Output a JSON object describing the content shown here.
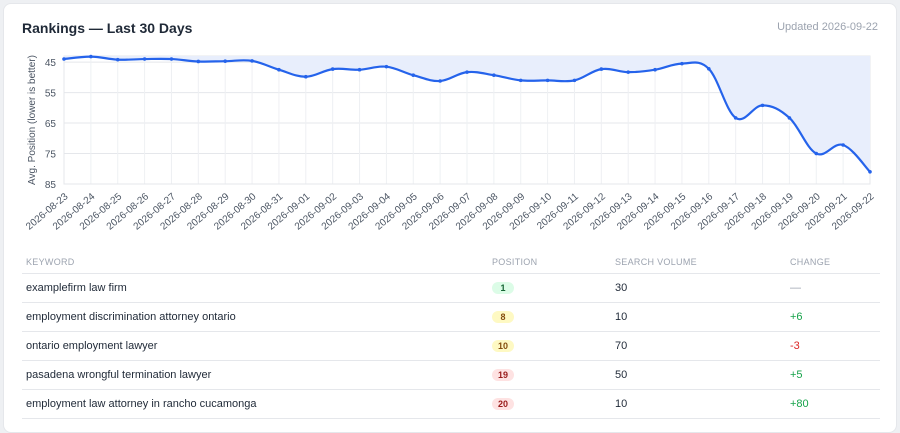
{
  "header": {
    "title": "Rankings — Last 30 Days",
    "updated": "Updated 2026-09-22"
  },
  "chart_data": {
    "type": "line",
    "ylabel": "Avg. Position (lower is better)",
    "y_reversed": true,
    "ylim": [
      43,
      85
    ],
    "y_ticks": [
      45,
      55,
      65,
      75,
      85
    ],
    "fill": "area",
    "color": "#2563eb",
    "fill_color": "#e8eefc",
    "x": [
      "2026-08-23",
      "2026-08-24",
      "2026-08-25",
      "2026-08-26",
      "2026-08-27",
      "2026-08-28",
      "2026-08-29",
      "2026-08-30",
      "2026-08-31",
      "2026-09-01",
      "2026-09-02",
      "2026-09-03",
      "2026-09-04",
      "2026-09-05",
      "2026-09-06",
      "2026-09-07",
      "2026-09-08",
      "2026-09-09",
      "2026-09-10",
      "2026-09-11",
      "2026-09-12",
      "2026-09-13",
      "2026-09-14",
      "2026-09-15",
      "2026-09-16",
      "2026-09-17",
      "2026-09-18",
      "2026-09-19",
      "2026-09-20",
      "2026-09-21",
      "2026-09-22"
    ],
    "values": [
      44,
      43.2,
      44.2,
      44,
      44,
      44.8,
      44.7,
      44.6,
      47.5,
      49.8,
      47.3,
      47.5,
      46.5,
      49.3,
      51.2,
      48.3,
      49.3,
      51,
      51,
      51,
      47.3,
      48.3,
      47.5,
      45.5,
      47.2,
      63.3,
      59.2,
      63.3,
      75,
      72.2,
      81
    ]
  },
  "table": {
    "columns": [
      "Keyword",
      "Position",
      "Search Volume",
      "Change"
    ],
    "rows": [
      {
        "keyword": "examplefirm law firm",
        "position": "1",
        "volume": "30",
        "change": "—",
        "badge": "green",
        "dir": "none"
      },
      {
        "keyword": "employment discrimination attorney ontario",
        "position": "8",
        "volume": "10",
        "change": "+6",
        "badge": "yellow",
        "dir": "pos"
      },
      {
        "keyword": "ontario employment lawyer",
        "position": "10",
        "volume": "70",
        "change": "-3",
        "badge": "yellow",
        "dir": "neg"
      },
      {
        "keyword": "pasadena wrongful termination lawyer",
        "position": "19",
        "volume": "50",
        "change": "+5",
        "badge": "red",
        "dir": "pos"
      },
      {
        "keyword": "employment law attorney in rancho cucamonga",
        "position": "20",
        "volume": "10",
        "change": "+80",
        "badge": "red",
        "dir": "pos"
      }
    ]
  }
}
